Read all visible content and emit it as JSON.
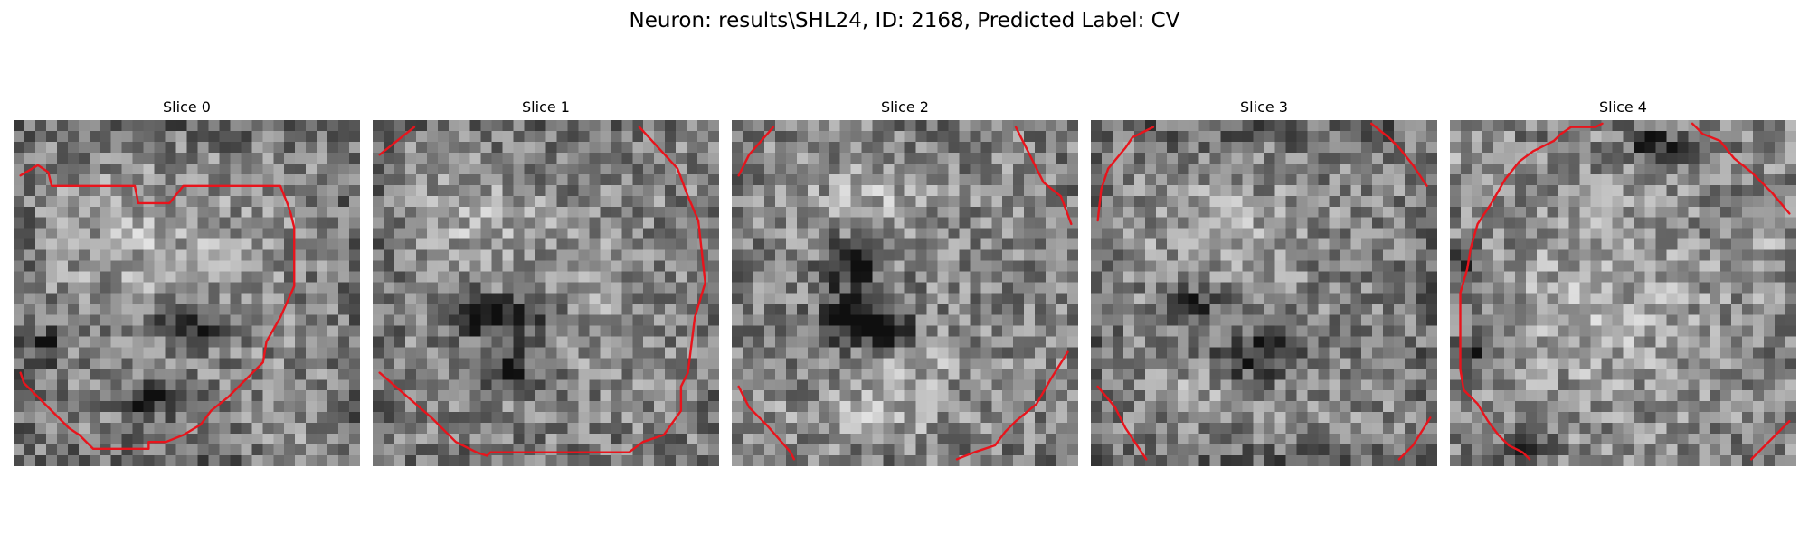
{
  "figure": {
    "title": "Neuron: results\\SHL24, ID: 2168, Predicted Label: CV"
  },
  "colors": {
    "contour": "#e8141c",
    "background": "#ffffff",
    "colormap": "grayscale"
  },
  "slices": [
    {
      "title": "Slice 0",
      "dark_regions": [
        [
          0.41,
          0.81,
          0.13,
          0.05
        ],
        [
          0.52,
          0.58,
          0.1,
          0.05
        ],
        [
          0.1,
          0.65,
          0.05,
          0.05
        ]
      ],
      "bright_regions": [
        [
          0.38,
          0.35,
          0.27,
          0.17
        ],
        [
          0.82,
          0.95,
          0.12,
          0.07
        ]
      ],
      "edge_darkening": 0.12,
      "contours": [
        [
          [
            0.02,
            0.16
          ],
          [
            0.07,
            0.13
          ],
          [
            0.1,
            0.15
          ],
          [
            0.11,
            0.19
          ],
          [
            0.35,
            0.19
          ],
          [
            0.36,
            0.24
          ],
          [
            0.45,
            0.24
          ],
          [
            0.49,
            0.19
          ],
          [
            0.77,
            0.19
          ],
          [
            0.79,
            0.24
          ],
          [
            0.8,
            0.27
          ],
          [
            0.81,
            0.31
          ],
          [
            0.81,
            0.48
          ],
          [
            0.77,
            0.57
          ],
          [
            0.73,
            0.64
          ],
          [
            0.72,
            0.7
          ],
          [
            0.69,
            0.73
          ],
          [
            0.62,
            0.8
          ],
          [
            0.57,
            0.84
          ],
          [
            0.54,
            0.88
          ],
          [
            0.49,
            0.91
          ],
          [
            0.44,
            0.93
          ],
          [
            0.39,
            0.93
          ],
          [
            0.39,
            0.95
          ],
          [
            0.23,
            0.95
          ],
          [
            0.19,
            0.91
          ],
          [
            0.16,
            0.89
          ],
          [
            0.11,
            0.84
          ],
          [
            0.03,
            0.76
          ],
          [
            0.02,
            0.73
          ]
        ]
      ]
    },
    {
      "title": "Slice 1",
      "dark_regions": [
        [
          0.38,
          0.57,
          0.17,
          0.06
        ],
        [
          0.38,
          0.72,
          0.09,
          0.06
        ],
        [
          0.3,
          0.55,
          0.07,
          0.05
        ]
      ],
      "bright_regions": [
        [
          0.3,
          0.3,
          0.16,
          0.14
        ],
        [
          0.6,
          0.5,
          0.14,
          0.16
        ]
      ],
      "edge_darkening": 0.08,
      "contours": [
        [
          [
            0.02,
            0.1
          ],
          [
            0.12,
            0.02
          ]
        ],
        [
          [
            0.77,
            0.02
          ],
          [
            0.88,
            0.14
          ],
          [
            0.91,
            0.22
          ],
          [
            0.94,
            0.29
          ],
          [
            0.96,
            0.47
          ],
          [
            0.93,
            0.57
          ],
          [
            0.91,
            0.73
          ],
          [
            0.89,
            0.77
          ],
          [
            0.89,
            0.84
          ],
          [
            0.84,
            0.91
          ],
          [
            0.78,
            0.93
          ],
          [
            0.74,
            0.96
          ],
          [
            0.34,
            0.96
          ],
          [
            0.33,
            0.97
          ],
          [
            0.3,
            0.96
          ],
          [
            0.24,
            0.93
          ],
          [
            0.17,
            0.86
          ],
          [
            0.02,
            0.73
          ]
        ]
      ]
    },
    {
      "title": "Slice 2",
      "dark_regions": [
        [
          0.35,
          0.58,
          0.1,
          0.08
        ],
        [
          0.45,
          0.6,
          0.08,
          0.06
        ],
        [
          0.35,
          0.42,
          0.08,
          0.08
        ]
      ],
      "bright_regions": [
        [
          0.4,
          0.22,
          0.18,
          0.12
        ],
        [
          0.4,
          0.86,
          0.22,
          0.08
        ],
        [
          0.55,
          0.7,
          0.16,
          0.08
        ]
      ],
      "edge_darkening": 0.04,
      "contours": [
        [
          [
            0.02,
            0.16
          ],
          [
            0.05,
            0.1
          ],
          [
            0.12,
            0.02
          ]
        ],
        [
          [
            0.82,
            0.02
          ],
          [
            0.87,
            0.12
          ],
          [
            0.9,
            0.18
          ],
          [
            0.95,
            0.22
          ],
          [
            0.98,
            0.3
          ]
        ],
        [
          [
            0.02,
            0.77
          ],
          [
            0.05,
            0.83
          ],
          [
            0.1,
            0.88
          ],
          [
            0.17,
            0.96
          ],
          [
            0.18,
            0.98
          ]
        ],
        [
          [
            0.65,
            0.98
          ],
          [
            0.7,
            0.96
          ],
          [
            0.76,
            0.94
          ],
          [
            0.79,
            0.9
          ],
          [
            0.82,
            0.87
          ],
          [
            0.88,
            0.82
          ],
          [
            0.92,
            0.75
          ],
          [
            0.97,
            0.67
          ]
        ]
      ]
    },
    {
      "title": "Slice 3",
      "dark_regions": [
        [
          0.45,
          0.68,
          0.1,
          0.07
        ],
        [
          0.57,
          0.66,
          0.07,
          0.05
        ],
        [
          0.3,
          0.53,
          0.06,
          0.05
        ]
      ],
      "bright_regions": [
        [
          0.35,
          0.3,
          0.2,
          0.12
        ],
        [
          0.3,
          0.78,
          0.14,
          0.07
        ]
      ],
      "edge_darkening": 0.14,
      "contours": [
        [
          [
            0.02,
            0.29
          ],
          [
            0.03,
            0.2
          ],
          [
            0.05,
            0.14
          ],
          [
            0.1,
            0.08
          ],
          [
            0.12,
            0.05
          ],
          [
            0.18,
            0.02
          ]
        ],
        [
          [
            0.81,
            0.01
          ],
          [
            0.86,
            0.05
          ],
          [
            0.89,
            0.08
          ],
          [
            0.93,
            0.13
          ],
          [
            0.97,
            0.19
          ]
        ],
        [
          [
            0.02,
            0.77
          ],
          [
            0.07,
            0.83
          ],
          [
            0.1,
            0.89
          ],
          [
            0.16,
            0.98
          ]
        ],
        [
          [
            0.89,
            0.98
          ],
          [
            0.93,
            0.94
          ],
          [
            0.98,
            0.86
          ]
        ]
      ]
    },
    {
      "title": "Slice 4",
      "dark_regions": [
        [
          0.05,
          0.4,
          0.04,
          0.05
        ],
        [
          0.06,
          0.68,
          0.04,
          0.05
        ],
        [
          0.6,
          0.07,
          0.08,
          0.04
        ],
        [
          0.22,
          0.95,
          0.06,
          0.04
        ]
      ],
      "bright_regions": [
        [
          0.45,
          0.55,
          0.3,
          0.3
        ],
        [
          0.06,
          0.06,
          0.08,
          0.07
        ],
        [
          0.9,
          0.38,
          0.08,
          0.1
        ]
      ],
      "edge_darkening": 0.02,
      "contours": [
        [
          [
            0.3,
            0.06
          ],
          [
            0.32,
            0.04
          ],
          [
            0.35,
            0.02
          ],
          [
            0.42,
            0.02
          ],
          [
            0.44,
            0.01
          ]
        ],
        [
          [
            0.3,
            0.06
          ],
          [
            0.24,
            0.09
          ],
          [
            0.2,
            0.12
          ],
          [
            0.16,
            0.17
          ],
          [
            0.12,
            0.24
          ],
          [
            0.08,
            0.3
          ],
          [
            0.06,
            0.37
          ],
          [
            0.05,
            0.43
          ],
          [
            0.03,
            0.5
          ],
          [
            0.03,
            0.58
          ],
          [
            0.03,
            0.72
          ],
          [
            0.04,
            0.78
          ],
          [
            0.08,
            0.82
          ],
          [
            0.11,
            0.87
          ],
          [
            0.14,
            0.91
          ],
          [
            0.17,
            0.94
          ],
          [
            0.21,
            0.96
          ],
          [
            0.23,
            0.98
          ]
        ],
        [
          [
            0.7,
            0.01
          ],
          [
            0.73,
            0.04
          ],
          [
            0.78,
            0.06
          ],
          [
            0.82,
            0.11
          ],
          [
            0.87,
            0.15
          ],
          [
            0.93,
            0.21
          ],
          [
            0.98,
            0.27
          ]
        ],
        [
          [
            0.87,
            0.98
          ],
          [
            0.93,
            0.92
          ],
          [
            0.98,
            0.87
          ]
        ]
      ]
    }
  ]
}
